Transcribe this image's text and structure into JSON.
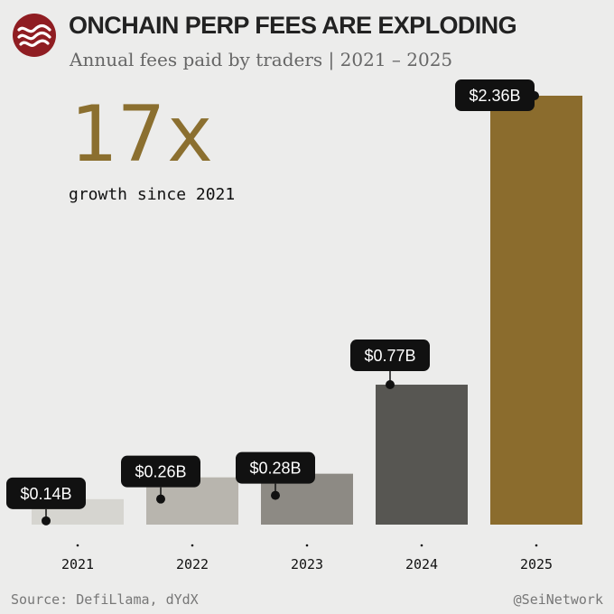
{
  "header": {
    "title": "ONCHAIN PERP FEES ARE EXPLODING",
    "subtitle": "Annual fees paid by traders | 2021 – 2025"
  },
  "callout": {
    "value": "17x",
    "caption": "growth since 2021"
  },
  "footer": {
    "source": "Source: DefiLlama, dYdX",
    "handle": "@SeiNetwork"
  },
  "colors": {
    "background": "#ececeb",
    "accent": "#8b6f2f",
    "logo": "#8f1d22"
  },
  "chart_data": {
    "type": "bar",
    "categories": [
      "2021",
      "2022",
      "2023",
      "2024",
      "2025"
    ],
    "values": [
      0.14,
      0.26,
      0.28,
      0.77,
      2.36
    ],
    "data_labels": [
      "$0.14B",
      "$0.26B",
      "$0.28B",
      "$0.77B",
      "$2.36B"
    ],
    "bar_colors": [
      "#d6d5d0",
      "#b8b5ae",
      "#8d8a84",
      "#575652",
      "#8b6c2d"
    ],
    "unit": "USD billions",
    "ylim": [
      0,
      2.36
    ],
    "grid": false,
    "legend": "none"
  }
}
